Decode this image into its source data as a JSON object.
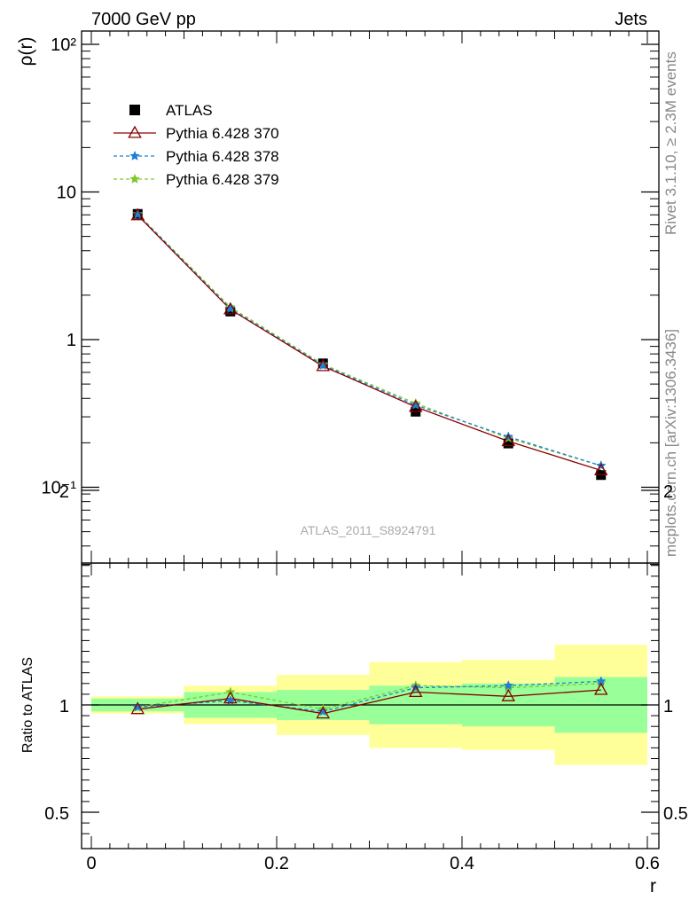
{
  "header": {
    "left": "7000 GeV pp",
    "right": "Jets"
  },
  "side_text": {
    "top": "Rivet 3.1.10, ≥ 2.3M events",
    "bottom": "mcplots.cern.ch [arXiv:1306.3436]"
  },
  "watermark": "ATLAS_2011_S8924791",
  "colors": {
    "data": "#000000",
    "pythia370": "#8b0000",
    "pythia378": "#1e7fd6",
    "pythia379": "#7ec92a",
    "band_inner": "#99ff99",
    "band_outer": "#ffff99"
  },
  "chart_data": [
    {
      "type": "line",
      "panel": "main",
      "ylabel": "ρ(r)",
      "xlabel": "",
      "xlim": [
        0,
        0.6
      ],
      "ylim": [
        0.03,
        120
      ],
      "yscale": "log",
      "ytick_labels": [
        "10⁻¹",
        "1",
        "10",
        "10²"
      ],
      "legend_position": "top-left",
      "x": [
        0.05,
        0.15,
        0.25,
        0.35,
        0.45,
        0.55
      ],
      "series": [
        {
          "name": "ATLAS",
          "values": [
            7.1,
            1.55,
            0.69,
            0.325,
            0.198,
            0.121
          ],
          "marker": "square"
        },
        {
          "name": "Pythia 6.428 370",
          "values": [
            6.95,
            1.6,
            0.66,
            0.35,
            0.205,
            0.13
          ],
          "marker": "triangle"
        },
        {
          "name": "Pythia 6.428 378",
          "values": [
            7.05,
            1.62,
            0.67,
            0.36,
            0.22,
            0.14
          ],
          "marker": "star"
        },
        {
          "name": "Pythia 6.428 379",
          "values": [
            7.1,
            1.66,
            0.68,
            0.37,
            0.215,
            0.14
          ],
          "marker": "star"
        }
      ]
    },
    {
      "type": "line",
      "panel": "ratio",
      "ylabel": "Ratio to ATLAS",
      "xlabel": "r",
      "xlim": [
        0,
        0.6
      ],
      "ylim": [
        0.4,
        2.3
      ],
      "ytick_labels": [
        "0.5",
        "1",
        "2"
      ],
      "xtick_labels": [
        "0",
        "0.2",
        "0.4",
        "0.6"
      ],
      "x": [
        0.05,
        0.15,
        0.25,
        0.35,
        0.45,
        0.55
      ],
      "bins": [
        [
          0.0,
          0.1
        ],
        [
          0.1,
          0.2
        ],
        [
          0.2,
          0.3
        ],
        [
          0.3,
          0.4
        ],
        [
          0.4,
          0.5
        ],
        [
          0.5,
          0.6
        ]
      ],
      "inner_band": [
        [
          0.97,
          1.03
        ],
        [
          0.94,
          1.06
        ],
        [
          0.93,
          1.07
        ],
        [
          0.91,
          1.09
        ],
        [
          0.9,
          1.1
        ],
        [
          0.87,
          1.13
        ]
      ],
      "outer_band": [
        [
          0.96,
          1.04
        ],
        [
          0.91,
          1.09
        ],
        [
          0.86,
          1.14
        ],
        [
          0.8,
          1.2
        ],
        [
          0.79,
          1.21
        ],
        [
          0.72,
          1.28
        ]
      ],
      "series": [
        {
          "name": "Pythia 6.428 370",
          "values": [
            0.98,
            1.03,
            0.96,
            1.06,
            1.04,
            1.07
          ]
        },
        {
          "name": "Pythia 6.428 378",
          "values": [
            0.99,
            1.02,
            0.97,
            1.08,
            1.09,
            1.11
          ]
        },
        {
          "name": "Pythia 6.428 379",
          "values": [
            0.99,
            1.06,
            0.98,
            1.09,
            1.08,
            1.1
          ]
        }
      ]
    }
  ]
}
